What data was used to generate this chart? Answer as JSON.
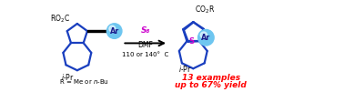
{
  "bg_color": "#ffffff",
  "blue": "#1a3fbf",
  "black": "#000000",
  "red": "#ff0000",
  "magenta": "#cc00cc",
  "ar_ball_color": "#6ec6f0",
  "ar_highlight": "#c8eafc",
  "figsize": [
    3.78,
    1.01
  ],
  "dpi": 100,
  "s8_label": "S₈",
  "dmf_label": "DMF",
  "temp_label": "110 or 140°  C",
  "r_label": "R = Me or n-Bu",
  "result1": "13 examples",
  "result2": "up to 67% yield",
  "ar_label": "Ar",
  "s_label": "S"
}
